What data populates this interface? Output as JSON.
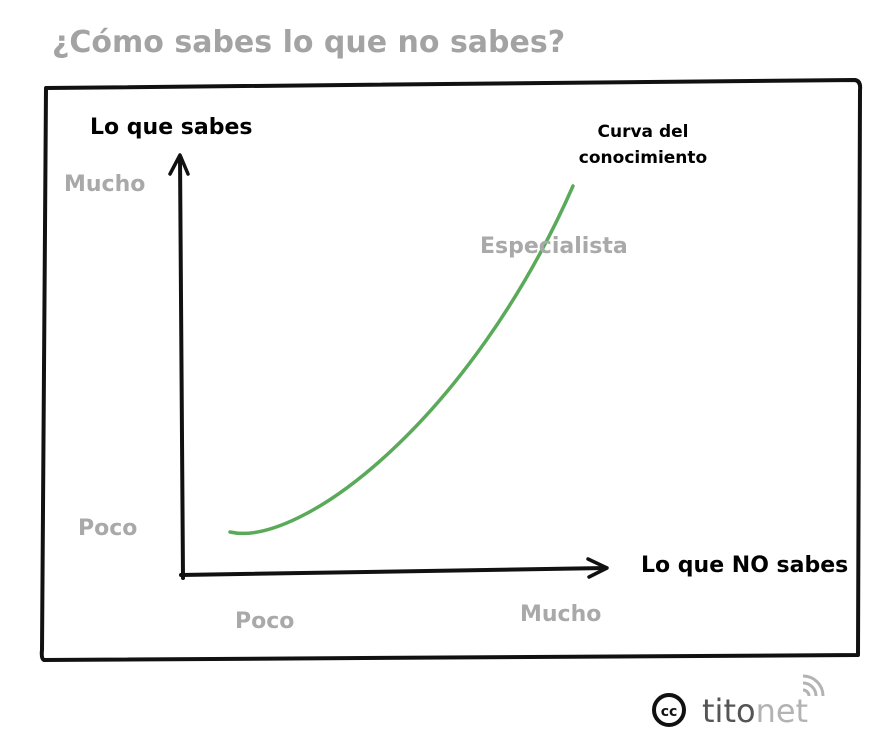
{
  "header": {
    "title": "¿Cómo sabes lo que no sabes?"
  },
  "diagram": {
    "y_axis": {
      "label": "Lo que sabes",
      "high": "Mucho",
      "low": "Poco"
    },
    "x_axis": {
      "label": "Lo que NO sabes",
      "low": "Poco",
      "high": "Mucho"
    },
    "curve": {
      "label_lines": [
        "Curva del",
        "conocimiento"
      ]
    },
    "annotation": "Especialista"
  },
  "footer": {
    "license": "cc",
    "brand": [
      "tito",
      "net"
    ]
  }
}
